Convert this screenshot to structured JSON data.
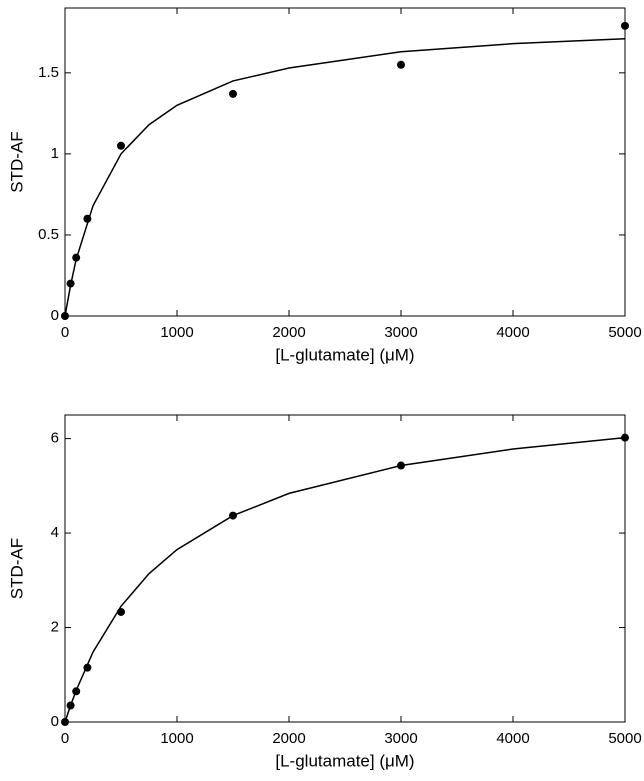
{
  "chart_data": [
    {
      "type": "scatter",
      "x_label": "[L-glutamate] (μM)",
      "y_label": "STD-AF",
      "xlim": [
        0,
        5000
      ],
      "ylim": [
        0,
        1.9
      ],
      "xticks": [
        0,
        1000,
        2000,
        3000,
        4000,
        5000
      ],
      "yticks": [
        0,
        0.5,
        1,
        1.5
      ],
      "series": [
        {
          "mode": "markers",
          "color": "#000000",
          "x": [
            0,
            50,
            100,
            200,
            500,
            1500,
            3000,
            5000
          ],
          "values": [
            0,
            0.2,
            0.36,
            0.6,
            1.05,
            1.37,
            1.55,
            1.79
          ]
        },
        {
          "mode": "line",
          "color": "#000000",
          "x": [
            0,
            50,
            100,
            250,
            500,
            750,
            1000,
            1500,
            2000,
            3000,
            4000,
            5000
          ],
          "values": [
            0,
            0.19,
            0.35,
            0.68,
            1.0,
            1.18,
            1.3,
            1.45,
            1.53,
            1.63,
            1.68,
            1.71
          ]
        }
      ]
    },
    {
      "type": "scatter",
      "x_label": "[L-glutamate] (μM)",
      "y_label": "STD-AF",
      "xlim": [
        0,
        5000
      ],
      "ylim": [
        0,
        6.5
      ],
      "xticks": [
        0,
        1000,
        2000,
        3000,
        4000,
        5000
      ],
      "yticks": [
        0,
        2,
        4,
        6
      ],
      "series": [
        {
          "mode": "markers",
          "color": "#000000",
          "x": [
            0,
            50,
            100,
            200,
            500,
            1500,
            3000,
            5000
          ],
          "values": [
            0,
            0.35,
            0.65,
            1.15,
            2.33,
            4.37,
            5.43,
            6.02
          ]
        },
        {
          "mode": "line",
          "color": "#000000",
          "x": [
            0,
            50,
            100,
            250,
            500,
            750,
            1000,
            1500,
            2000,
            3000,
            4000,
            5000
          ],
          "values": [
            0,
            0.35,
            0.67,
            1.48,
            2.45,
            3.14,
            3.65,
            4.37,
            4.84,
            5.43,
            5.78,
            6.02
          ]
        }
      ]
    }
  ]
}
